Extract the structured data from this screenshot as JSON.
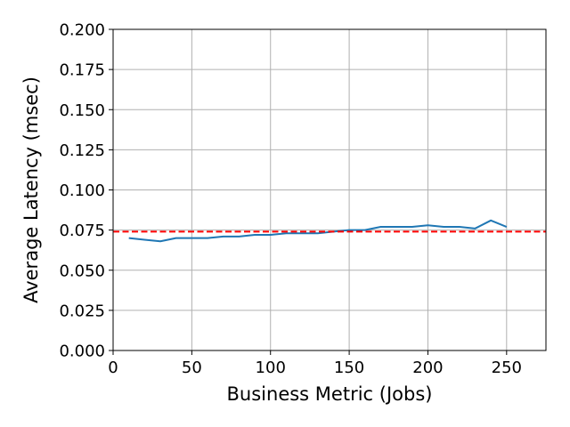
{
  "chart_data": {
    "type": "line",
    "title": "",
    "xlabel": "Business Metric (Jobs)",
    "ylabel": "Average Latency (msec)",
    "xlim": [
      0,
      275
    ],
    "ylim": [
      0,
      0.2
    ],
    "x_ticks": [
      0,
      50,
      100,
      150,
      200,
      250
    ],
    "x_tick_labels": [
      "0",
      "50",
      "100",
      "150",
      "200",
      "250"
    ],
    "y_ticks": [
      0,
      0.025,
      0.05,
      0.075,
      0.1,
      0.125,
      0.15,
      0.175,
      0.2
    ],
    "y_tick_labels": [
      "0.000",
      "0.025",
      "0.050",
      "0.075",
      "0.100",
      "0.125",
      "0.150",
      "0.175",
      "0.200"
    ],
    "grid": true,
    "series": [
      {
        "color": "#1f77b4",
        "style": "solid",
        "x": [
          10,
          20,
          30,
          40,
          50,
          60,
          70,
          80,
          90,
          100,
          110,
          120,
          130,
          140,
          150,
          160,
          170,
          180,
          190,
          200,
          210,
          220,
          230,
          240,
          250
        ],
        "y": [
          0.07,
          0.069,
          0.068,
          0.07,
          0.07,
          0.07,
          0.071,
          0.071,
          0.072,
          0.072,
          0.073,
          0.073,
          0.073,
          0.074,
          0.075,
          0.075,
          0.077,
          0.077,
          0.077,
          0.078,
          0.077,
          0.077,
          0.076,
          0.081,
          0.077
        ]
      }
    ],
    "reference_lines": [
      {
        "orientation": "horizontal",
        "y": 0.074,
        "color": "#ff0000",
        "style": "dashed"
      }
    ]
  }
}
